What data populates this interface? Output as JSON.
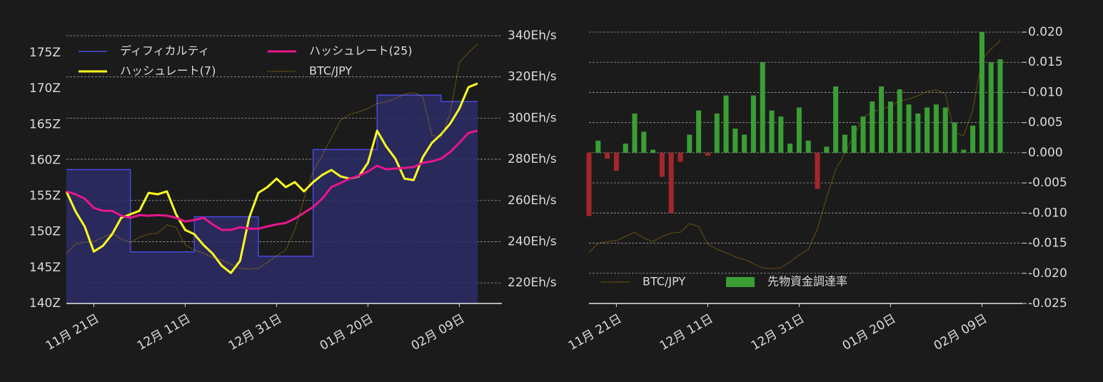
{
  "chart_data": [
    {
      "type": "line",
      "categories": [
        null,
        null,
        null,
        "11月 21日",
        null,
        null,
        null,
        null,
        null,
        null,
        null,
        null,
        null,
        "12月 11日",
        null,
        null,
        null,
        null,
        null,
        null,
        null,
        null,
        null,
        "12月 31日",
        null,
        null,
        null,
        null,
        null,
        null,
        null,
        null,
        null,
        "01月 20日",
        null,
        null,
        null,
        null,
        null,
        null,
        null,
        null,
        null,
        "02月 09日",
        null,
        null
      ],
      "ylim": [
        140,
        177.4
      ],
      "yticks": [
        {
          "value": 140,
          "label": "140Z"
        },
        {
          "value": 145,
          "label": "145Z"
        },
        {
          "value": 150,
          "label": "150Z"
        },
        {
          "value": 155,
          "label": "155Z"
        },
        {
          "value": 160,
          "label": "160Z"
        },
        {
          "value": 165,
          "label": "165Z"
        },
        {
          "value": 170,
          "label": "170Z"
        },
        {
          "value": 175,
          "label": "175Z"
        }
      ],
      "y2lim": [
        210,
        340
      ],
      "y2ticks": [
        {
          "value": 220,
          "label": "220Eh/s"
        },
        {
          "value": 240,
          "label": "240Eh/s"
        },
        {
          "value": 260,
          "label": "260Eh/s"
        },
        {
          "value": 280,
          "label": "280Eh/s"
        },
        {
          "value": 300,
          "label": "300Eh/s"
        },
        {
          "value": 320,
          "label": "320Eh/s"
        },
        {
          "value": 340,
          "label": "340Eh/s"
        }
      ],
      "y3lim": [
        5000000,
        8200000
      ],
      "grid": "y2",
      "legend": "upper left",
      "series": [
        {
          "name": "ディフィカルティ",
          "color": "#4a4ade",
          "fill": "#2b2b66",
          "step": true,
          "axis": "y",
          "values": [
            158.7,
            158.7,
            158.7,
            158.7,
            158.7,
            158.7,
            158.7,
            147.2,
            147.2,
            147.2,
            147.2,
            147.2,
            147.2,
            147.2,
            152.1,
            152.1,
            152.1,
            152.1,
            152.1,
            152.1,
            152.1,
            146.6,
            146.6,
            146.6,
            146.6,
            146.6,
            146.6,
            161.5,
            161.5,
            161.5,
            161.5,
            161.5,
            161.5,
            161.5,
            169.1,
            169.1,
            169.1,
            169.1,
            169.1,
            169.1,
            169.1,
            168.2,
            168.2,
            168.2,
            168.2,
            168.2
          ]
        },
        {
          "name": "ハッシュレート(7)",
          "color": "#ffff1f",
          "axis": "y2",
          "values": [
            264.4,
            254.7,
            247.4,
            235.2,
            238,
            243.6,
            251.6,
            253.3,
            255,
            263.7,
            263,
            264.4,
            253.3,
            245.7,
            243.6,
            238.4,
            234.2,
            228.3,
            224.8,
            230.7,
            251.6,
            263.7,
            266.5,
            270.6,
            266.5,
            268.9,
            264.4,
            268.9,
            272.4,
            274.8,
            271.7,
            270.6,
            271.7,
            278.3,
            293.9,
            286.2,
            280.3,
            270.6,
            269.9,
            281,
            288,
            292.1,
            297.3,
            304.6,
            315,
            316.8
          ]
        },
        {
          "name": "ハッシュレート(25)",
          "color": "#e8168c",
          "axis": "y2",
          "values": [
            264.4,
            263,
            260.9,
            256.4,
            255,
            255,
            252.6,
            251.6,
            252.9,
            252.6,
            252.9,
            252.6,
            251.6,
            249.8,
            250.5,
            251.6,
            248.4,
            245.7,
            245.7,
            247,
            246.3,
            246.3,
            247.4,
            248.4,
            249.1,
            251.2,
            254,
            256.8,
            260.9,
            266.5,
            268.5,
            270.6,
            272,
            274.1,
            276.9,
            275.1,
            275.5,
            275.8,
            276.2,
            278.3,
            279,
            280.3,
            283.5,
            288,
            292.8,
            293.9
          ]
        },
        {
          "name": "BTC/JPY",
          "color": "#b8860b",
          "linestyle": "dotted",
          "axis": "y3",
          "values": [
            5600000,
            5710000,
            5730000,
            5740000,
            5790000,
            5840000,
            5770000,
            5730000,
            5790000,
            5830000,
            5840000,
            5940000,
            5910000,
            5700000,
            5640000,
            5600000,
            5550000,
            5520000,
            5470000,
            5420000,
            5410000,
            5420000,
            5490000,
            5570000,
            5640000,
            5880000,
            6250000,
            6580000,
            6770000,
            6980000,
            7190000,
            7260000,
            7290000,
            7330000,
            7390000,
            7410000,
            7450000,
            7500000,
            7520000,
            7470000,
            7010000,
            6980000,
            7280000,
            7880000,
            8000000,
            8100000
          ]
        }
      ]
    },
    {
      "type": "bar",
      "categories": [
        null,
        null,
        null,
        "11月 21日",
        null,
        null,
        null,
        null,
        null,
        null,
        null,
        null,
        null,
        "12月 11日",
        null,
        null,
        null,
        null,
        null,
        null,
        null,
        null,
        null,
        "12月 31日",
        null,
        null,
        null,
        null,
        null,
        null,
        null,
        null,
        null,
        "01月 20日",
        null,
        null,
        null,
        null,
        null,
        null,
        null,
        null,
        null,
        "02月 09日",
        null,
        null
      ],
      "y2lim": [
        -0.025,
        0.02
      ],
      "y2ticks": [
        {
          "value": -0.025,
          "label": "-0.025"
        },
        {
          "value": -0.02,
          "label": "-0.020"
        },
        {
          "value": -0.015,
          "label": "-0.015"
        },
        {
          "value": -0.01,
          "label": "-0.010"
        },
        {
          "value": -0.005,
          "label": "-0.005"
        },
        {
          "value": 0,
          "label": "0.000"
        },
        {
          "value": 0.005,
          "label": "0.005"
        },
        {
          "value": 0.01,
          "label": "0.010"
        },
        {
          "value": 0.015,
          "label": "0.015"
        },
        {
          "value": 0.02,
          "label": "0.020"
        }
      ],
      "y3lim": [
        5000000,
        8200000
      ],
      "grid": "y2",
      "legend": "lower left",
      "series": [
        {
          "name": "BTC/JPY",
          "type": "line",
          "color": "#b8860b",
          "linestyle": "dotted",
          "axis": "y3",
          "values": [
            5600000,
            5710000,
            5730000,
            5740000,
            5790000,
            5840000,
            5770000,
            5730000,
            5790000,
            5830000,
            5840000,
            5940000,
            5910000,
            5700000,
            5640000,
            5600000,
            5550000,
            5520000,
            5470000,
            5420000,
            5410000,
            5420000,
            5490000,
            5570000,
            5640000,
            5880000,
            6250000,
            6580000,
            6770000,
            6980000,
            7190000,
            7260000,
            7290000,
            7330000,
            7390000,
            7410000,
            7450000,
            7500000,
            7520000,
            7470000,
            7010000,
            6980000,
            7280000,
            7880000,
            8000000,
            8100000
          ]
        },
        {
          "name": "先物資金調達率",
          "color": "#3a9e35",
          "negative_color": "#a3262b",
          "axis": "y2",
          "values": [
            -0.0105,
            0.002,
            -0.001,
            -0.003,
            0.0015,
            0.0065,
            0.0035,
            0.0005,
            -0.004,
            -0.01,
            -0.0015,
            0.003,
            0.007,
            -0.0005,
            0.0065,
            0.0095,
            0.004,
            0.003,
            0.0095,
            0.015,
            0.007,
            0.006,
            0.0015,
            0.0075,
            0.002,
            -0.006,
            0.001,
            0.011,
            0.003,
            0.0045,
            0.006,
            0.0085,
            0.011,
            0.0085,
            0.0105,
            0.008,
            0.0065,
            0.0075,
            0.008,
            0.0075,
            0.005,
            0.0005,
            0.0045,
            0.02,
            0.015,
            0.0155
          ]
        }
      ]
    }
  ]
}
